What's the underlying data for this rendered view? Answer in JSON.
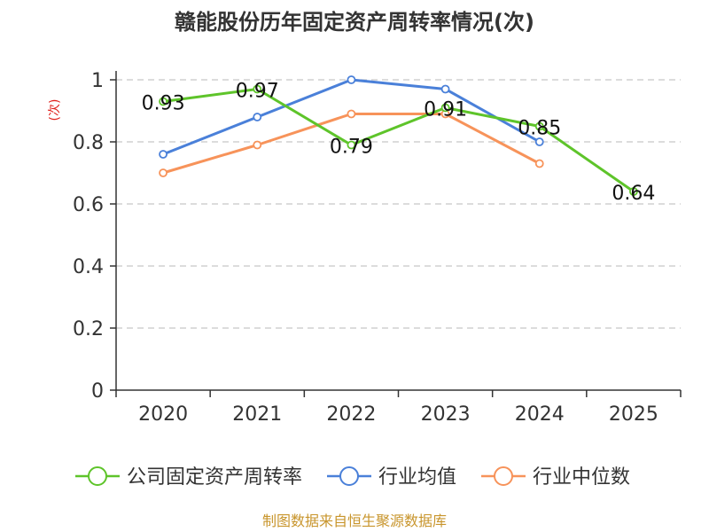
{
  "chart_data": {
    "type": "line",
    "title": "赣能股份历年固定资产周转率情况(次)",
    "ylabel": "(次)",
    "xlabel": "",
    "categories": [
      "2020",
      "2021",
      "2022",
      "2023",
      "2024",
      "2025"
    ],
    "ylim": [
      0,
      1
    ],
    "yticks": [
      "0",
      "0.2",
      "0.4",
      "0.6",
      "0.8",
      "1"
    ],
    "grid": true,
    "legend_position": "bottom",
    "series": [
      {
        "name": "公司固定资产周转率",
        "color": "#5ec42a",
        "values": [
          0.93,
          0.97,
          0.79,
          0.91,
          0.85,
          0.64
        ],
        "labels": [
          "0.93",
          "0.97",
          "0.79",
          "0.91",
          "0.85",
          "0.64"
        ],
        "show_labels": true
      },
      {
        "name": "行业均值",
        "color": "#4a80d9",
        "values": [
          0.76,
          0.88,
          1.0,
          0.97,
          0.8,
          null
        ],
        "show_labels": false
      },
      {
        "name": "行业中位数",
        "color": "#f7935a",
        "values": [
          0.7,
          0.79,
          0.89,
          0.89,
          0.73,
          null
        ],
        "show_labels": false
      }
    ],
    "source": "制图数据来自恒生聚源数据库"
  }
}
